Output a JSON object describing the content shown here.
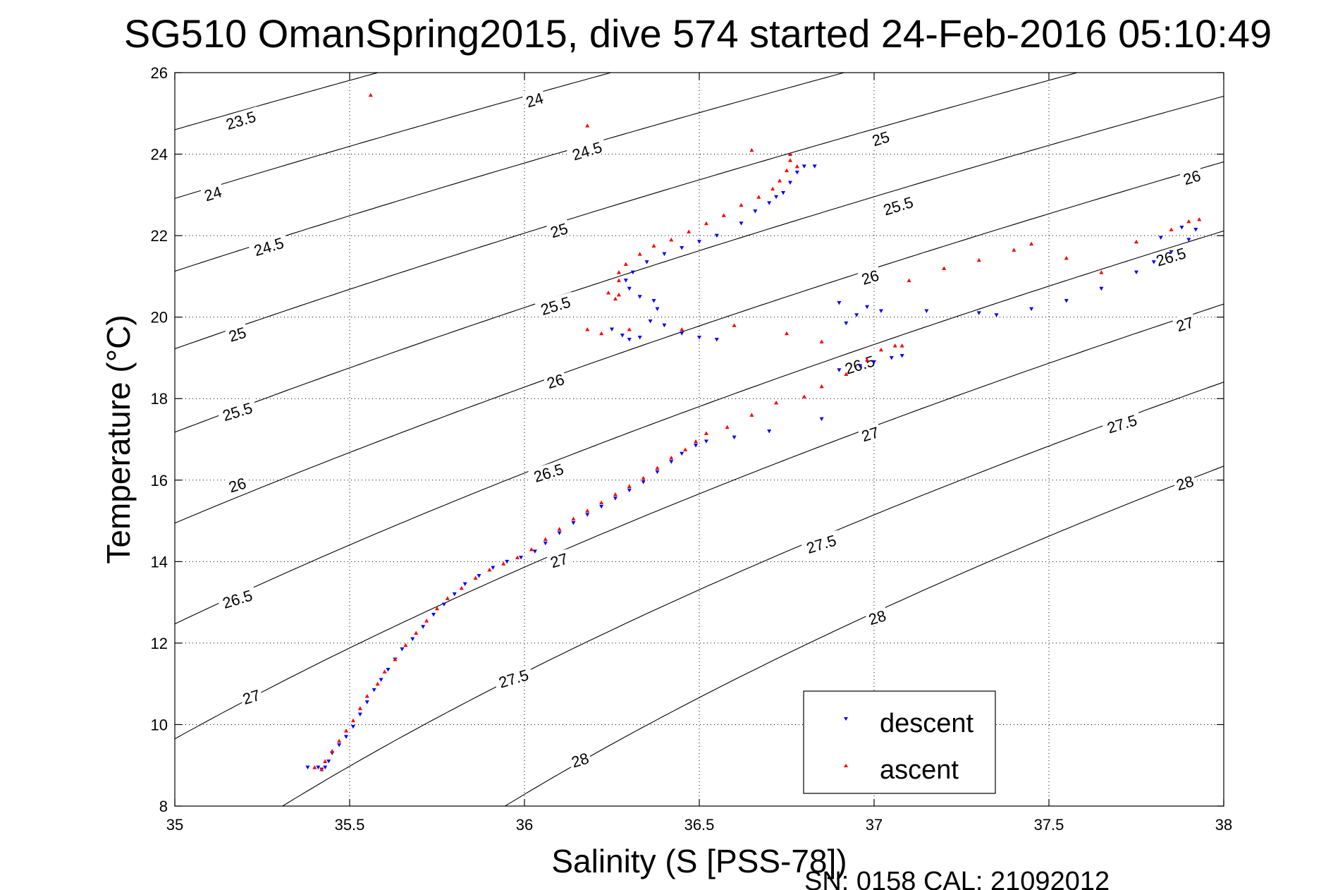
{
  "chart_data": {
    "type": "scatter",
    "title": "SG510 OmanSpring2015, dive 574 started 24-Feb-2016 05:10:49",
    "xlabel": "Salinity (S [PSS-78])",
    "ylabel": "Temperature (°C)",
    "xlim": [
      35,
      38
    ],
    "ylim": [
      8,
      26
    ],
    "xticks": [
      "35",
      "35.5",
      "36",
      "36.5",
      "37",
      "37.5",
      "38"
    ],
    "yticks": [
      "8",
      "10",
      "12",
      "14",
      "16",
      "18",
      "20",
      "22",
      "24",
      "26"
    ],
    "grid": true,
    "legend_position": "bottom-right",
    "footer": "SN: 0158  CAL: 21092012",
    "density_contours": {
      "levels": [
        23.5,
        24,
        24.5,
        25,
        25.5,
        26,
        26.5,
        27,
        27.5,
        28
      ],
      "labels": [
        {
          "text": "23.5",
          "s": 35.19,
          "t": 24.8
        },
        {
          "text": "24",
          "s": 35.11,
          "t": 23.0
        },
        {
          "text": "24.5",
          "s": 35.27,
          "t": 21.7
        },
        {
          "text": "25",
          "s": 35.18,
          "t": 19.55
        },
        {
          "text": "25.5",
          "s": 35.18,
          "t": 17.65
        },
        {
          "text": "26",
          "s": 35.18,
          "t": 15.85
        },
        {
          "text": "26.5",
          "s": 35.18,
          "t": 13.05
        },
        {
          "text": "27",
          "s": 35.22,
          "t": 10.65
        },
        {
          "text": "24",
          "s": 36.03,
          "t": 25.3
        },
        {
          "text": "24.5",
          "s": 36.18,
          "t": 24.05
        },
        {
          "text": "25",
          "s": 36.1,
          "t": 22.1
        },
        {
          "text": "25.5",
          "s": 36.09,
          "t": 20.25
        },
        {
          "text": "26",
          "s": 36.09,
          "t": 18.4
        },
        {
          "text": "26.5",
          "s": 36.07,
          "t": 16.15
        },
        {
          "text": "27",
          "s": 36.1,
          "t": 14.0
        },
        {
          "text": "27.5",
          "s": 35.97,
          "t": 11.1
        },
        {
          "text": "28",
          "s": 36.16,
          "t": 9.1
        },
        {
          "text": "25",
          "s": 37.02,
          "t": 24.35
        },
        {
          "text": "25.5",
          "s": 37.07,
          "t": 22.7
        },
        {
          "text": "26",
          "s": 36.99,
          "t": 20.95
        },
        {
          "text": "26.5",
          "s": 36.96,
          "t": 18.8
        },
        {
          "text": "27",
          "s": 36.99,
          "t": 17.1
        },
        {
          "text": "27.5",
          "s": 36.85,
          "t": 14.4
        },
        {
          "text": "28",
          "s": 37.01,
          "t": 12.6
        },
        {
          "text": "26",
          "s": 37.91,
          "t": 23.4
        },
        {
          "text": "26.5",
          "s": 37.85,
          "t": 21.45
        },
        {
          "text": "27",
          "s": 37.89,
          "t": 19.8
        },
        {
          "text": "27.5",
          "s": 37.71,
          "t": 17.35
        },
        {
          "text": "28",
          "s": 37.89,
          "t": 15.9
        }
      ]
    },
    "series": [
      {
        "name": "descent",
        "color": "#0000ff",
        "marker": "triangle-down",
        "points": [
          [
            35.38,
            8.95
          ],
          [
            35.41,
            8.95
          ],
          [
            35.42,
            8.9
          ],
          [
            35.43,
            8.95
          ],
          [
            35.44,
            9.1
          ],
          [
            35.45,
            9.3
          ],
          [
            35.47,
            9.5
          ],
          [
            35.49,
            9.7
          ],
          [
            35.51,
            9.95
          ],
          [
            35.53,
            10.25
          ],
          [
            35.55,
            10.55
          ],
          [
            35.57,
            10.85
          ],
          [
            35.59,
            11.1
          ],
          [
            35.61,
            11.35
          ],
          [
            35.63,
            11.6
          ],
          [
            35.65,
            11.85
          ],
          [
            35.68,
            12.1
          ],
          [
            35.71,
            12.4
          ],
          [
            35.74,
            12.7
          ],
          [
            35.77,
            12.95
          ],
          [
            35.8,
            13.2
          ],
          [
            35.83,
            13.45
          ],
          [
            35.87,
            13.65
          ],
          [
            35.91,
            13.85
          ],
          [
            35.95,
            14.0
          ],
          [
            35.99,
            14.1
          ],
          [
            36.03,
            14.25
          ],
          [
            36.06,
            14.45
          ],
          [
            36.1,
            14.7
          ],
          [
            36.14,
            14.95
          ],
          [
            36.18,
            15.15
          ],
          [
            36.22,
            15.35
          ],
          [
            36.26,
            15.55
          ],
          [
            36.3,
            15.75
          ],
          [
            36.34,
            15.95
          ],
          [
            36.38,
            16.2
          ],
          [
            36.42,
            16.45
          ],
          [
            36.45,
            16.65
          ],
          [
            36.49,
            16.85
          ],
          [
            36.52,
            16.95
          ],
          [
            36.6,
            17.05
          ],
          [
            36.7,
            17.2
          ],
          [
            36.85,
            17.5
          ],
          [
            36.9,
            18.7
          ],
          [
            36.96,
            18.8
          ],
          [
            37.0,
            18.9
          ],
          [
            37.05,
            19.0
          ],
          [
            37.08,
            19.05
          ],
          [
            36.92,
            19.85
          ],
          [
            36.95,
            20.05
          ],
          [
            36.98,
            20.25
          ],
          [
            36.9,
            20.35
          ],
          [
            37.02,
            20.15
          ],
          [
            37.15,
            20.15
          ],
          [
            37.3,
            20.1
          ],
          [
            37.35,
            20.05
          ],
          [
            37.45,
            20.2
          ],
          [
            37.55,
            20.4
          ],
          [
            37.65,
            20.7
          ],
          [
            37.75,
            21.1
          ],
          [
            37.8,
            21.35
          ],
          [
            37.85,
            21.6
          ],
          [
            37.9,
            21.9
          ],
          [
            37.92,
            22.15
          ],
          [
            37.88,
            22.2
          ],
          [
            37.82,
            21.95
          ],
          [
            36.25,
            19.7
          ],
          [
            36.28,
            19.55
          ],
          [
            36.3,
            19.45
          ],
          [
            36.33,
            19.5
          ],
          [
            36.36,
            19.9
          ],
          [
            36.38,
            20.2
          ],
          [
            36.37,
            20.4
          ],
          [
            36.33,
            20.5
          ],
          [
            36.3,
            20.7
          ],
          [
            36.29,
            20.9
          ],
          [
            36.31,
            21.1
          ],
          [
            36.35,
            21.35
          ],
          [
            36.4,
            21.55
          ],
          [
            36.45,
            21.7
          ],
          [
            36.5,
            21.85
          ],
          [
            36.55,
            22.0
          ],
          [
            36.62,
            22.3
          ],
          [
            36.66,
            22.6
          ],
          [
            36.7,
            22.8
          ],
          [
            36.72,
            22.95
          ],
          [
            36.74,
            23.05
          ],
          [
            36.76,
            23.3
          ],
          [
            36.78,
            23.55
          ],
          [
            36.8,
            23.7
          ],
          [
            36.83,
            23.7
          ],
          [
            36.5,
            19.5
          ],
          [
            36.55,
            19.45
          ],
          [
            36.45,
            19.6
          ],
          [
            36.4,
            19.8
          ]
        ]
      },
      {
        "name": "ascent",
        "color": "#ff0000",
        "marker": "triangle-up",
        "points": [
          [
            35.4,
            8.95
          ],
          [
            35.42,
            8.9
          ],
          [
            35.43,
            9.1
          ],
          [
            35.45,
            9.35
          ],
          [
            35.47,
            9.6
          ],
          [
            35.49,
            9.85
          ],
          [
            35.51,
            10.1
          ],
          [
            35.53,
            10.4
          ],
          [
            35.55,
            10.7
          ],
          [
            35.58,
            11.0
          ],
          [
            35.6,
            11.3
          ],
          [
            35.63,
            11.6
          ],
          [
            35.66,
            11.95
          ],
          [
            35.69,
            12.25
          ],
          [
            35.72,
            12.55
          ],
          [
            35.75,
            12.85
          ],
          [
            35.78,
            13.1
          ],
          [
            35.82,
            13.35
          ],
          [
            35.86,
            13.6
          ],
          [
            35.9,
            13.8
          ],
          [
            35.94,
            13.95
          ],
          [
            35.98,
            14.1
          ],
          [
            36.02,
            14.3
          ],
          [
            36.06,
            14.55
          ],
          [
            36.1,
            14.8
          ],
          [
            36.14,
            15.05
          ],
          [
            36.18,
            15.25
          ],
          [
            36.22,
            15.45
          ],
          [
            36.26,
            15.65
          ],
          [
            36.3,
            15.85
          ],
          [
            36.34,
            16.05
          ],
          [
            36.38,
            16.3
          ],
          [
            36.42,
            16.55
          ],
          [
            36.46,
            16.75
          ],
          [
            36.49,
            16.95
          ],
          [
            36.52,
            17.15
          ],
          [
            36.58,
            17.3
          ],
          [
            36.65,
            17.6
          ],
          [
            36.72,
            17.9
          ],
          [
            36.8,
            18.05
          ],
          [
            36.85,
            18.3
          ],
          [
            36.92,
            18.6
          ],
          [
            36.98,
            18.95
          ],
          [
            37.02,
            19.2
          ],
          [
            37.06,
            19.3
          ],
          [
            37.08,
            19.3
          ],
          [
            37.1,
            20.9
          ],
          [
            37.2,
            21.2
          ],
          [
            37.3,
            21.4
          ],
          [
            37.4,
            21.65
          ],
          [
            37.45,
            21.8
          ],
          [
            37.55,
            21.45
          ],
          [
            37.65,
            21.1
          ],
          [
            37.75,
            21.85
          ],
          [
            37.85,
            22.15
          ],
          [
            37.9,
            22.35
          ],
          [
            37.93,
            22.4
          ],
          [
            36.18,
            19.7
          ],
          [
            36.22,
            19.6
          ],
          [
            36.24,
            20.6
          ],
          [
            36.26,
            20.45
          ],
          [
            36.27,
            20.55
          ],
          [
            36.27,
            20.9
          ],
          [
            36.27,
            21.1
          ],
          [
            36.29,
            21.3
          ],
          [
            36.33,
            21.55
          ],
          [
            36.37,
            21.75
          ],
          [
            36.42,
            21.9
          ],
          [
            36.47,
            22.1
          ],
          [
            36.52,
            22.3
          ],
          [
            36.57,
            22.5
          ],
          [
            36.62,
            22.75
          ],
          [
            36.67,
            22.95
          ],
          [
            36.71,
            23.15
          ],
          [
            36.73,
            23.35
          ],
          [
            36.75,
            23.6
          ],
          [
            36.76,
            23.85
          ],
          [
            36.76,
            24.0
          ],
          [
            36.78,
            23.7
          ],
          [
            36.65,
            24.1
          ],
          [
            36.18,
            24.7
          ],
          [
            35.56,
            25.45
          ],
          [
            36.3,
            19.7
          ],
          [
            36.45,
            19.7
          ],
          [
            36.6,
            19.8
          ],
          [
            36.75,
            19.6
          ],
          [
            36.85,
            19.4
          ]
        ]
      }
    ]
  }
}
